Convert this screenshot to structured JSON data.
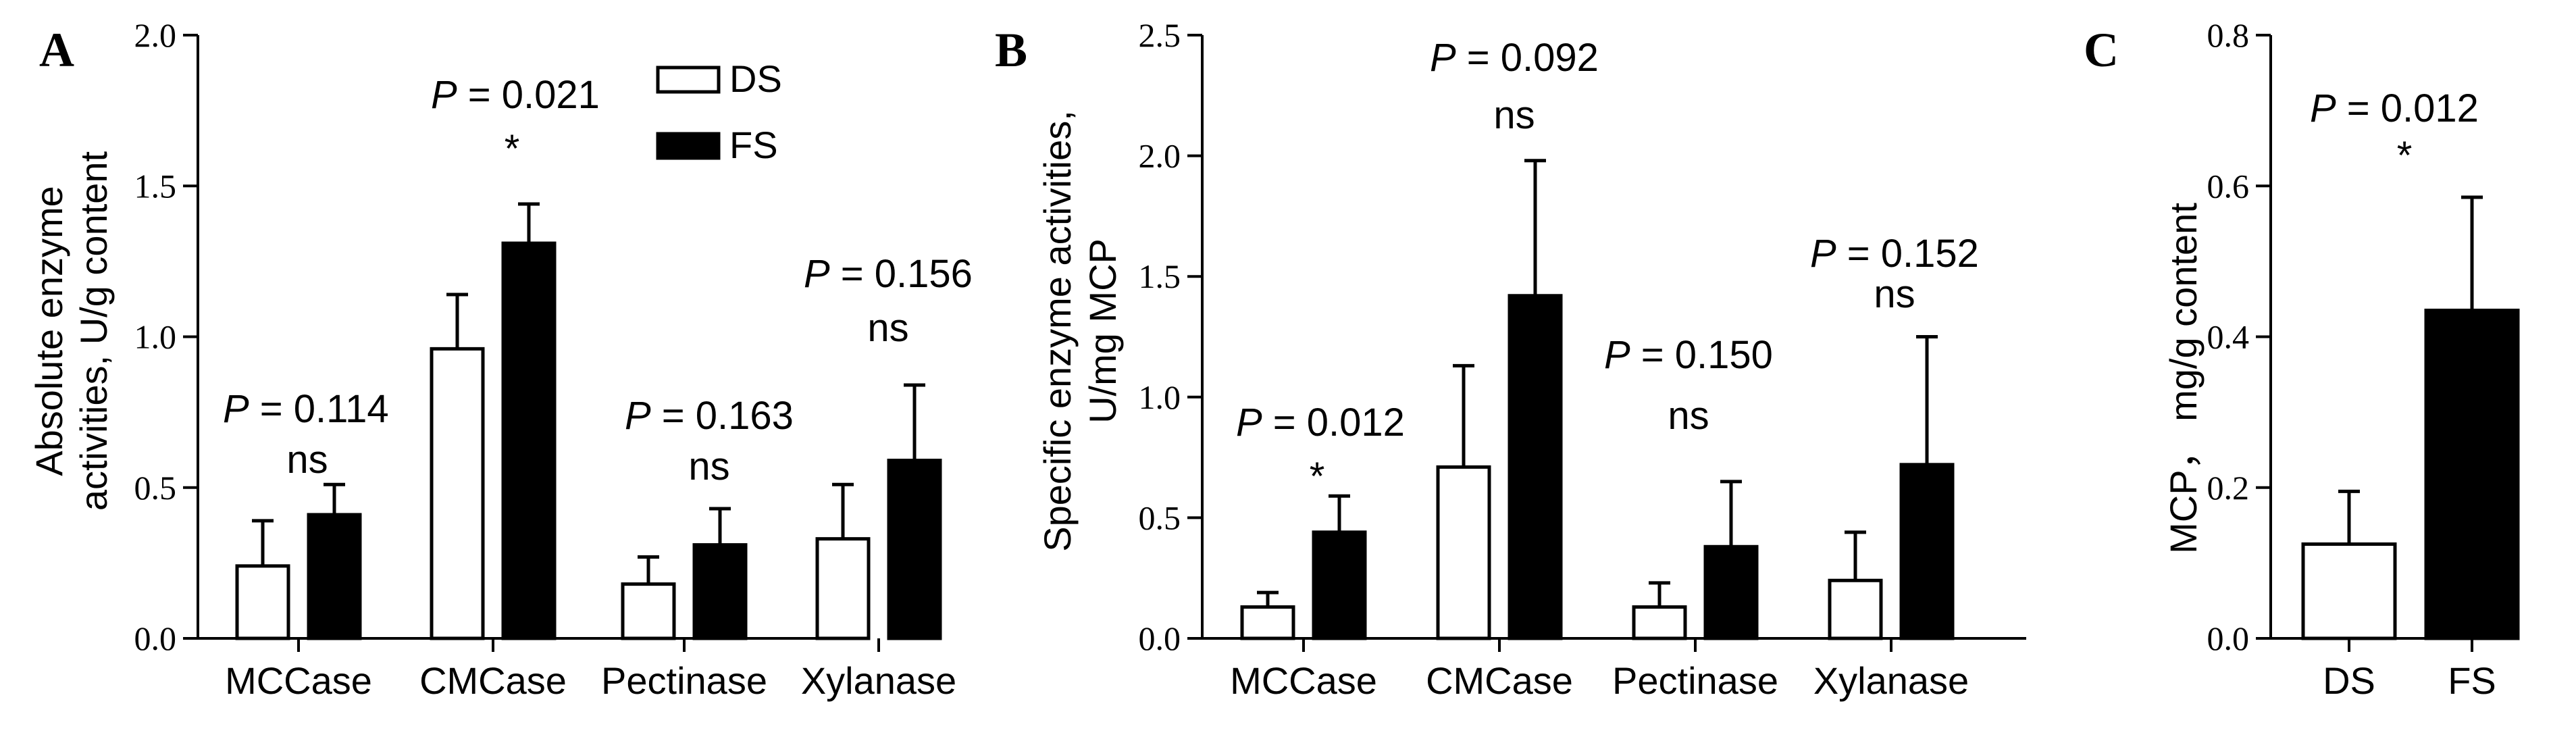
{
  "chart_data": [
    {
      "panel": "A",
      "type": "bar",
      "ylabel_lines": [
        "Absolute enzyme",
        "activities, U/g content"
      ],
      "ylim": [
        0,
        2.0
      ],
      "yticks": [
        "0.0",
        "0.5",
        "1.0",
        "1.5",
        "2.0"
      ],
      "categories": [
        "MCCase",
        "CMCase",
        "Pectinase",
        "Xylanase"
      ],
      "series": [
        {
          "name": "DS",
          "values": [
            0.24,
            0.96,
            0.18,
            0.33
          ],
          "errors": [
            0.15,
            0.18,
            0.09,
            0.18
          ]
        },
        {
          "name": "FS",
          "values": [
            0.41,
            1.31,
            0.31,
            0.59
          ],
          "errors": [
            0.1,
            0.13,
            0.12,
            0.25
          ]
        }
      ],
      "p_values": [
        "= 0.114",
        "= 0.021",
        "= 0.163",
        "= 0.156"
      ],
      "significance": [
        "ns",
        "*",
        "ns",
        "ns"
      ],
      "legend": [
        "DS",
        "FS"
      ]
    },
    {
      "panel": "B",
      "type": "bar",
      "ylabel_lines": [
        "Specific enzyme activities,",
        "U/mg MCP"
      ],
      "ylim": [
        0,
        2.5
      ],
      "yticks": [
        "0.0",
        "0.5",
        "1.0",
        "1.5",
        "2.0",
        "2.5"
      ],
      "categories": [
        "MCCase",
        "CMCase",
        "Pectinase",
        "Xylanase"
      ],
      "series": [
        {
          "name": "DS",
          "values": [
            0.13,
            0.71,
            0.13,
            0.24
          ],
          "errors": [
            0.06,
            0.42,
            0.1,
            0.2
          ]
        },
        {
          "name": "FS",
          "values": [
            0.44,
            1.42,
            0.38,
            0.72
          ],
          "errors": [
            0.15,
            0.56,
            0.27,
            0.53
          ]
        }
      ],
      "p_values": [
        "= 0.012",
        "= 0.092",
        "= 0.150",
        "= 0.152"
      ],
      "significance": [
        "*",
        "ns",
        "ns",
        "ns"
      ]
    },
    {
      "panel": "C",
      "type": "bar",
      "ylabel_lines": [
        "MCP， mg/g content"
      ],
      "ylim": [
        0,
        0.8
      ],
      "yticks": [
        "0.0",
        "0.2",
        "0.4",
        "0.6",
        "0.8"
      ],
      "categories": [
        "DS",
        "FS"
      ],
      "series": [
        {
          "name": "MCP",
          "values": [
            0.125,
            0.435
          ],
          "errors": [
            0.07,
            0.15
          ]
        }
      ],
      "p_values": [
        "= 0.012"
      ],
      "significance": [
        "*"
      ]
    }
  ]
}
